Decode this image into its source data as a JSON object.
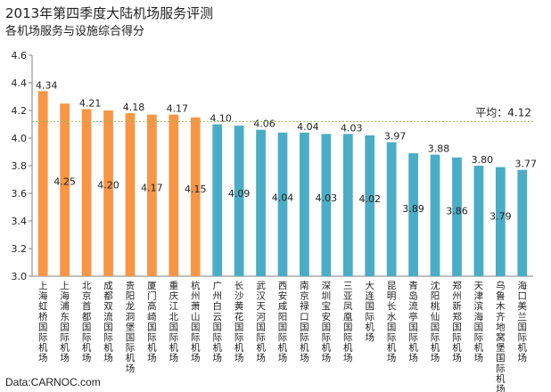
{
  "chart_data": {
    "type": "bar",
    "title": "2013年第四季度大陆机场服务评测",
    "subtitle": "各机场服务与设施综合得分",
    "source": "Data:CARNOC.com",
    "ylim": [
      3.0,
      4.6
    ],
    "yticks": [
      "3.0",
      "3.2",
      "3.4",
      "3.6",
      "3.8",
      "4.0",
      "4.2",
      "4.4",
      "4.6"
    ],
    "average": {
      "label": "平均：4.12",
      "value": 4.12
    },
    "colors": {
      "orange": "#F79646",
      "blue": "#4BACC6",
      "avg_line": "#9BBB59",
      "axis": "#808080"
    },
    "bars": [
      {
        "label": "上海虹桥国际机场",
        "value": 4.34,
        "value_label": "4.34",
        "color": "orange"
      },
      {
        "label": "上海浦东国际机场",
        "value": 4.25,
        "value_label": "4.25",
        "color": "orange"
      },
      {
        "label": "北京首都国际机场",
        "value": 4.21,
        "value_label": "4.21",
        "color": "orange"
      },
      {
        "label": "成都双流国际机场",
        "value": 4.2,
        "value_label": "4.20",
        "color": "orange"
      },
      {
        "label": "贵阳龙洞堡国际机场",
        "value": 4.18,
        "value_label": "4.18",
        "color": "orange"
      },
      {
        "label": "厦门高崎国际机场",
        "value": 4.17,
        "value_label": "4.17",
        "color": "orange"
      },
      {
        "label": "重庆江北国际机场",
        "value": 4.17,
        "value_label": "4.17",
        "color": "orange"
      },
      {
        "label": "杭州萧山国际机场",
        "value": 4.15,
        "value_label": "4.15",
        "color": "orange"
      },
      {
        "label": "广州白云国际机场",
        "value": 4.1,
        "value_label": "4.10",
        "color": "blue"
      },
      {
        "label": "长沙黄花国际机场",
        "value": 4.09,
        "value_label": "4.09",
        "color": "blue"
      },
      {
        "label": "武汉天河国际机场",
        "value": 4.06,
        "value_label": "4.06",
        "color": "blue"
      },
      {
        "label": "西安咸阳国际机场",
        "value": 4.04,
        "value_label": "4.04",
        "color": "blue"
      },
      {
        "label": "南京禄口国际机场",
        "value": 4.04,
        "value_label": "4.04",
        "color": "blue"
      },
      {
        "label": "深圳宝安国际机场",
        "value": 4.03,
        "value_label": "4.03",
        "color": "blue"
      },
      {
        "label": "三亚凤凰国际机场",
        "value": 4.03,
        "value_label": "4.03",
        "color": "blue"
      },
      {
        "label": "大连国际机场",
        "value": 4.02,
        "value_label": "4.02",
        "color": "blue"
      },
      {
        "label": "昆明长水国际机场",
        "value": 3.97,
        "value_label": "3.97",
        "color": "blue"
      },
      {
        "label": "青岛流亭国际机场",
        "value": 3.89,
        "value_label": "3.89",
        "color": "blue"
      },
      {
        "label": "沈阳桃仙国际机场",
        "value": 3.88,
        "value_label": "3.88",
        "color": "blue"
      },
      {
        "label": "郑州新郑国际机场",
        "value": 3.86,
        "value_label": "3.86",
        "color": "blue"
      },
      {
        "label": "天津滨海国际机场",
        "value": 3.8,
        "value_label": "3.80",
        "color": "blue"
      },
      {
        "label": "乌鲁木齐地窝堡国际机场",
        "value": 3.79,
        "value_label": "3.79",
        "color": "blue"
      },
      {
        "label": "海口美兰国际机场",
        "value": 3.77,
        "value_label": "3.77",
        "color": "blue"
      }
    ]
  }
}
